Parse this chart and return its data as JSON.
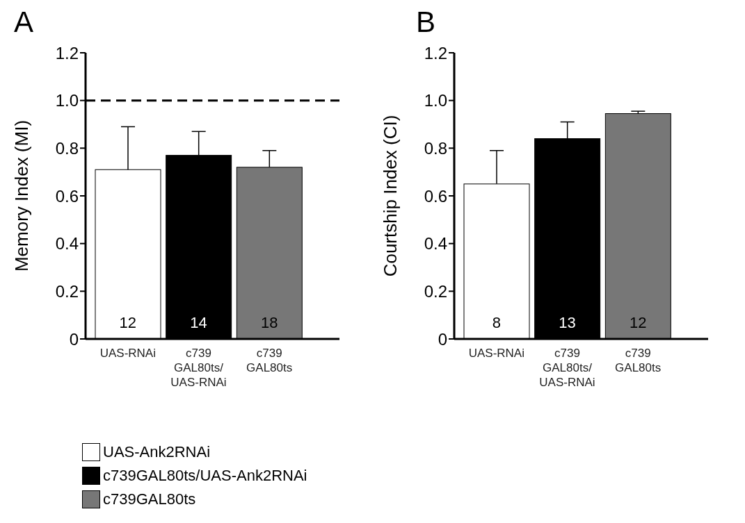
{
  "chart_data": [
    {
      "type": "bar",
      "title": "A",
      "ylabel": "Memory Index (MI)",
      "categories": [
        "UAS-RNAi",
        "c739\nGAL80ts/\nUAS-RNAi",
        "c739\nGAL80ts"
      ],
      "stacked": true,
      "series": [
        {
          "name": "UAS-Ank2RNAi",
          "color": "#ffffff",
          "values": [
            0.71,
            null,
            null
          ],
          "errors": [
            [
              0.71,
              0.89
            ],
            null,
            null
          ]
        },
        {
          "name": "c739GAL80ts/UAS-Ank2RNAi",
          "color": "#000000",
          "values": [
            null,
            0.77,
            null
          ],
          "errors": [
            null,
            [
              0.77,
              0.87
            ],
            null
          ]
        },
        {
          "name": "c739GAL80ts",
          "color": "#777777",
          "values": [
            null,
            null,
            0.72
          ],
          "errors": [
            null,
            null,
            [
              0.72,
              0.79
            ]
          ]
        }
      ],
      "ylim": [
        0,
        1.2
      ],
      "yticks": [
        0,
        0.2,
        0.4,
        0.6,
        0.8,
        {
          "value": 1,
          "label": "1.0"
        },
        1.2
      ],
      "ref_lines": [
        {
          "axis": "y",
          "value": 1,
          "line_style": "dashed",
          "color": "#000000"
        }
      ],
      "annotations": [
        "12",
        "14",
        "18"
      ],
      "legend": "bottom left",
      "grid": false
    },
    {
      "type": "bar",
      "title": "B",
      "ylabel": "Courtship Index (CI)",
      "categories": [
        "UAS-RNAi",
        "c739\nGAL80ts/\nUAS-RNAi",
        "c739\nGAL80ts"
      ],
      "stacked": true,
      "series": [
        {
          "color": "#ffffff",
          "values": [
            0.65,
            null,
            null
          ],
          "errors": [
            [
              0.65,
              0.79
            ],
            null,
            null
          ]
        },
        {
          "color": "#000000",
          "values": [
            null,
            0.84,
            null
          ],
          "errors": [
            null,
            [
              0.84,
              0.91
            ],
            null
          ]
        },
        {
          "color": "#777777",
          "values": [
            null,
            null,
            0.945
          ],
          "errors": [
            null,
            null,
            [
              0.945,
              0.955
            ]
          ]
        }
      ],
      "ylim": [
        0,
        1.2
      ],
      "yticks": [
        0,
        0.2,
        0.4,
        0.6,
        0.8,
        {
          "value": 1,
          "label": "1.0"
        },
        1.2
      ],
      "annotations": [
        "8",
        "13",
        "12"
      ],
      "legend": false,
      "grid": false
    }
  ]
}
